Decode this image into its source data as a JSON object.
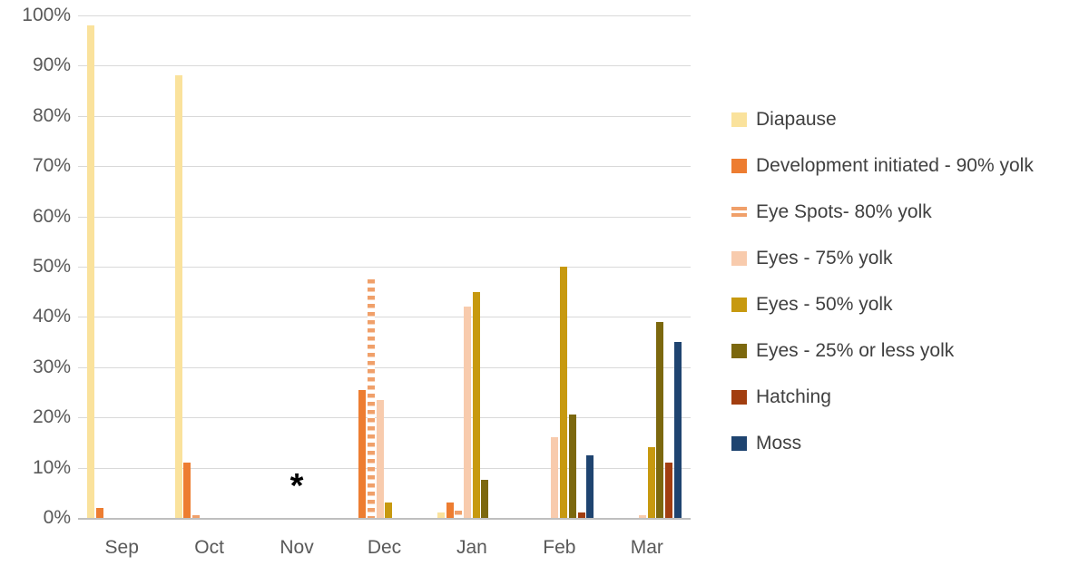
{
  "chart_data": {
    "type": "bar",
    "title": "",
    "xlabel": "",
    "ylabel": "",
    "categories": [
      "Sep",
      "Oct",
      "Nov",
      "Dec",
      "Jan",
      "Feb",
      "Mar"
    ],
    "series": [
      {
        "name": "Diapause",
        "color": "#FAE29C",
        "pattern": "solid",
        "values": [
          98,
          88,
          0,
          0,
          1,
          0,
          0
        ]
      },
      {
        "name": "Development initiated - 90% yolk",
        "color": "#ED7D31",
        "pattern": "solid",
        "values": [
          2,
          11,
          0,
          25.5,
          3,
          0,
          0
        ]
      },
      {
        "name": "Eye Spots- 80% yolk",
        "color": "#F0A06A",
        "pattern": "dashed",
        "values": [
          0,
          0.5,
          0,
          47.5,
          1.5,
          0,
          0
        ]
      },
      {
        "name": "Eyes - 75% yolk",
        "color": "#F8CBAD",
        "pattern": "solid",
        "values": [
          0,
          0,
          0,
          23.5,
          42,
          16,
          0.5
        ]
      },
      {
        "name": "Eyes - 50% yolk",
        "color": "#C7990F",
        "pattern": "solid",
        "values": [
          0,
          0,
          0,
          3,
          45,
          50,
          14
        ]
      },
      {
        "name": "Eyes - 25% or less yolk",
        "color": "#7C680E",
        "pattern": "solid",
        "values": [
          0,
          0,
          0,
          0,
          7.5,
          20.5,
          39
        ]
      },
      {
        "name": "Hatching",
        "color": "#A23E10",
        "pattern": "solid",
        "values": [
          0,
          0,
          0,
          0,
          0,
          1,
          11
        ]
      },
      {
        "name": "Moss",
        "color": "#1F4470",
        "pattern": "solid",
        "values": [
          0,
          0,
          0,
          0,
          0,
          12.5,
          35
        ]
      }
    ],
    "yticks": [
      "100%",
      "90%",
      "80%",
      "70%",
      "60%",
      "50%",
      "40%",
      "30%",
      "20%",
      "10%",
      "0%"
    ],
    "ylim": [
      0,
      100
    ],
    "grid": true,
    "legend_position": "right",
    "annotations": [
      {
        "text": "*",
        "category": "Nov",
        "y_percent": 6
      }
    ]
  },
  "colors": {
    "gridline": "#d9d9d9",
    "baseline": "#bfbfbf",
    "axis_text": "#595959",
    "legend_text": "#404040",
    "annotation": "#000000",
    "background": "#ffffff"
  }
}
